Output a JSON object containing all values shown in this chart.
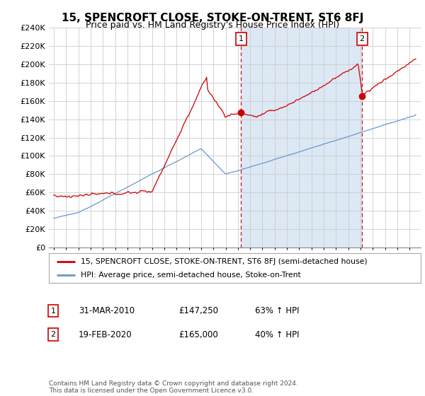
{
  "title": "15, SPENCROFT CLOSE, STOKE-ON-TRENT, ST6 8FJ",
  "subtitle": "Price paid vs. HM Land Registry's House Price Index (HPI)",
  "ylabel_ticks": [
    "£0",
    "£20K",
    "£40K",
    "£60K",
    "£80K",
    "£100K",
    "£120K",
    "£140K",
    "£160K",
    "£180K",
    "£200K",
    "£220K",
    "£240K"
  ],
  "ylim": [
    0,
    240000
  ],
  "ytick_values": [
    0,
    20000,
    40000,
    60000,
    80000,
    100000,
    120000,
    140000,
    160000,
    180000,
    200000,
    220000,
    240000
  ],
  "line1_color": "#cc0000",
  "line2_color": "#6699cc",
  "vline_color": "#cc0000",
  "shade_color": "#dde8f5",
  "legend_label1": "15, SPENCROFT CLOSE, STOKE-ON-TRENT, ST6 8FJ (semi-detached house)",
  "legend_label2": "HPI: Average price, semi-detached house, Stoke-on-Trent",
  "transaction1_date": "31-MAR-2010",
  "transaction1_price": "£147,250",
  "transaction1_hpi": "63% ↑ HPI",
  "transaction1_year": 2010.25,
  "transaction1_value": 147250,
  "transaction2_date": "19-FEB-2020",
  "transaction2_price": "£165,000",
  "transaction2_hpi": "40% ↑ HPI",
  "transaction2_year": 2020.12,
  "transaction2_value": 165000,
  "footer": "Contains HM Land Registry data © Crown copyright and database right 2024.\nThis data is licensed under the Open Government Licence v3.0.",
  "background_color": "#ffffff",
  "grid_color": "#cccccc"
}
